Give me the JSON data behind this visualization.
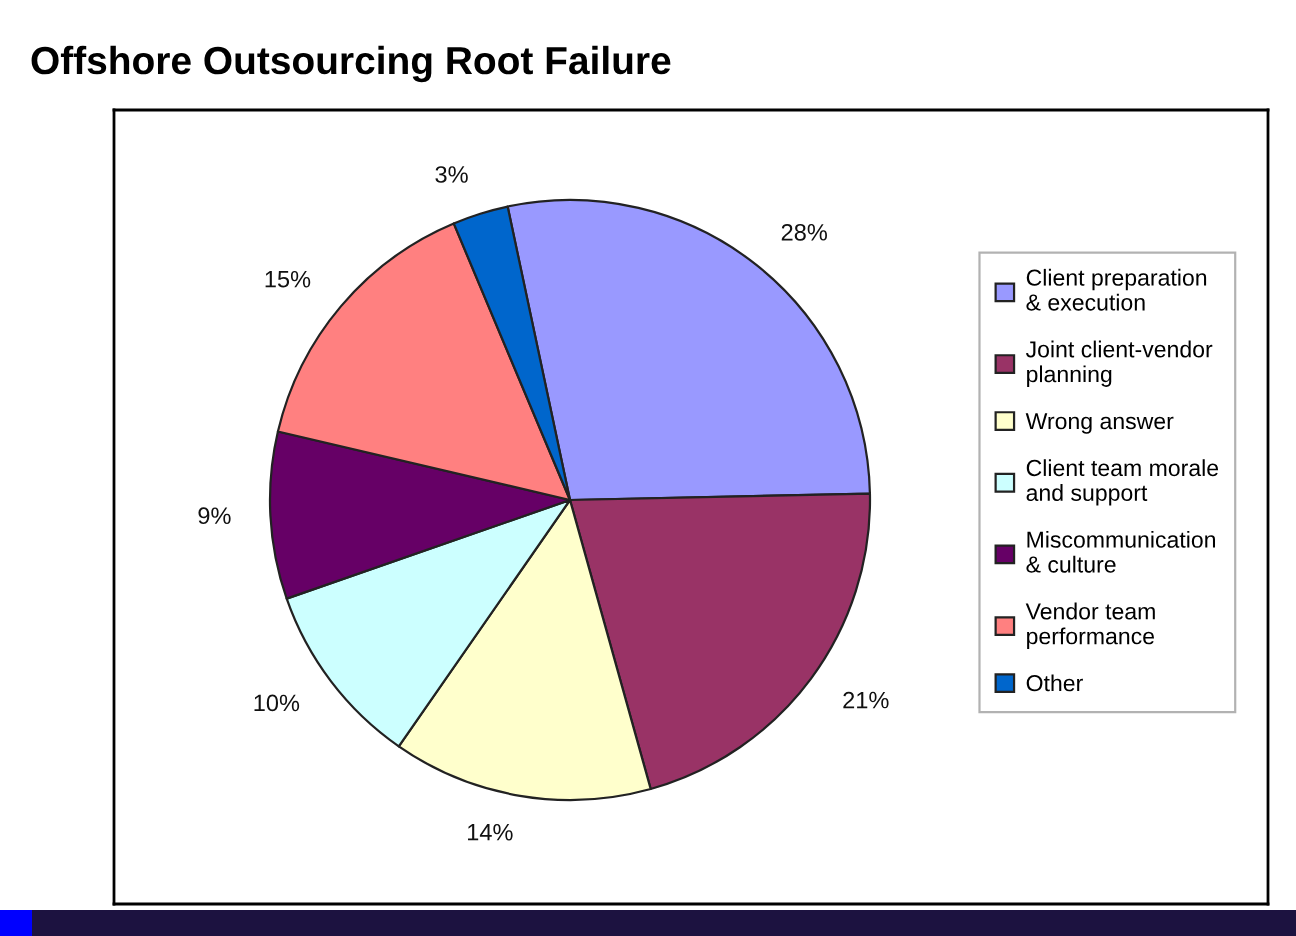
{
  "chart_data": {
    "type": "pie",
    "title": "Offshore Outsourcing Root Failure",
    "categories": [
      "Client preparation\n& execution",
      "Joint client-vendor\nplanning",
      "Wrong answer",
      "Client team morale\nand support",
      "Miscommunication\n& culture",
      "Vendor team\nperformance",
      "Other"
    ],
    "values": [
      28,
      21,
      14,
      10,
      9,
      15,
      3
    ],
    "colors": [
      "#9999ff",
      "#993366",
      "#ffffcc",
      "#ccffff",
      "#660066",
      "#ff8080",
      "#0066cc"
    ],
    "value_labels": [
      "28%",
      "21%",
      "14%",
      "10%",
      "9%",
      "15%",
      "3%"
    ],
    "legend": "right"
  }
}
